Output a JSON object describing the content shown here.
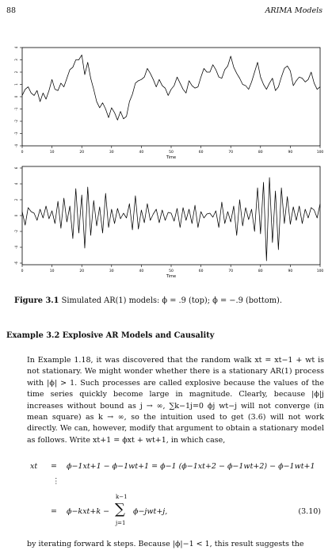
{
  "header": {
    "page_number": "88",
    "running_title": "ARIMA Models"
  },
  "plots": [
    {
      "xlabel": "Time",
      "xticks": [
        "0",
        "10",
        "20",
        "30",
        "40",
        "50",
        "60",
        "70",
        "80",
        "90",
        "100"
      ],
      "yticks": [
        "-4",
        "-3",
        "-2",
        "-1",
        "0",
        "1",
        "2",
        "3",
        "4"
      ],
      "ylim": [
        -4,
        4
      ],
      "xlim": [
        0,
        100
      ]
    },
    {
      "xlabel": "Time",
      "xticks": [
        "0",
        "10",
        "20",
        "30",
        "40",
        "50",
        "60",
        "70",
        "80",
        "90",
        "100"
      ],
      "yticks": [
        "-6",
        "-4",
        "-2",
        "0",
        "2",
        "4",
        "6"
      ],
      "ylim": [
        -6.2,
        6.2
      ],
      "xlim": [
        0,
        100
      ]
    }
  ],
  "chart_data": [
    {
      "type": "line",
      "title": "",
      "xlabel": "Time",
      "ylabel": "",
      "xlim": [
        0,
        100
      ],
      "ylim": [
        -4,
        4
      ],
      "series": [
        {
          "values": [
            0.1,
            0.6,
            0.8,
            0.3,
            0.1,
            0.5,
            -0.4,
            0.3,
            -0.2,
            0.5,
            1.4,
            0.6,
            0.5,
            1.1,
            0.8,
            1.5,
            2.2,
            2.4,
            3.0,
            3.0,
            3.4,
            1.8,
            2.8,
            1.5,
            0.6,
            -0.4,
            -0.9,
            -0.5,
            -1.0,
            -1.7,
            -0.9,
            -1.3,
            -1.9,
            -1.2,
            -1.8,
            -1.6,
            -0.4,
            0.2,
            1.1,
            1.3,
            1.4,
            1.6,
            2.3,
            1.9,
            1.4,
            0.8,
            1.4,
            0.9,
            0.7,
            0.1,
            0.6,
            0.9,
            1.6,
            1.1,
            0.6,
            0.3,
            1.3,
            0.9,
            0.7,
            0.8,
            1.6,
            2.3,
            2.0,
            2.0,
            2.6,
            2.2,
            1.6,
            1.5,
            2.2,
            2.5,
            3.3,
            2.4,
            1.9,
            1.5,
            1.0,
            0.9,
            0.6,
            1.2,
            2.0,
            2.8,
            1.6,
            1.0,
            0.6,
            1.1,
            1.5,
            0.5,
            0.8,
            1.6,
            2.3,
            2.5,
            2.1,
            0.9,
            1.3,
            1.6,
            1.5,
            1.2,
            1.4,
            2.0,
            1.1,
            0.6,
            0.8
          ]
        }
      ]
    },
    {
      "type": "line",
      "title": "",
      "xlabel": "Time",
      "ylabel": "",
      "xlim": [
        0,
        100
      ],
      "ylim": [
        -6.2,
        6.2
      ],
      "series": [
        {
          "values": [
            0.5,
            -1.2,
            1.0,
            0.5,
            0.3,
            -0.6,
            0.8,
            -0.3,
            1.2,
            -0.4,
            0.6,
            -1.0,
            1.8,
            -1.6,
            2.2,
            -0.8,
            1.2,
            -2.9,
            3.4,
            -2.2,
            2.6,
            -4.1,
            3.6,
            -2.5,
            1.9,
            -1.3,
            1.1,
            -2.2,
            2.8,
            -1.5,
            0.8,
            -1.0,
            0.9,
            -0.4,
            0.3,
            -0.3,
            1.5,
            -1.8,
            2.5,
            -1.7,
            0.7,
            -0.9,
            1.5,
            -0.6,
            0.2,
            0.8,
            -0.9,
            0.7,
            -0.6,
            0.4,
            0.3,
            -0.7,
            0.9,
            -1.5,
            1.0,
            -0.6,
            0.8,
            -1.0,
            1.3,
            -1.5,
            0.5,
            -0.3,
            0.2,
            0.3,
            -0.2,
            0.6,
            -1.5,
            1.7,
            -1.0,
            0.5,
            -0.8,
            1.2,
            -2.5,
            2.0,
            -1.3,
            1.0,
            -0.5,
            0.8,
            -2.0,
            3.5,
            -2.3,
            4.2,
            -5.7,
            4.8,
            -3.4,
            3.1,
            -4.3,
            3.5,
            -1.0,
            2.4,
            -1.1,
            1.1,
            -0.6,
            1.2,
            -1.0,
            0.8,
            -0.3,
            1.0,
            0.7,
            -0.3,
            1.5
          ]
        }
      ]
    }
  ],
  "caption": {
    "label": "Figure 3.1",
    "text": " Simulated AR(1) models: ϕ = .9 (top); ϕ = −.9 (bottom)."
  },
  "example": {
    "title": "Example 3.2 Explosive AR Models and Causality"
  },
  "paragraph1": "In Example 1.18, it was discovered that the random walk xt = xt−1 + wt is not stationary. We might wonder whether there is a stationary AR(1) process with |ϕ| > 1. Such processes are called explosive because the values of the time series quickly become large in magnitude. Clearly, because |ϕ|j increases without bound as j → ∞, ∑k−1j=0 ϕj wt−j will not converge (in mean square) as k → ∞, so the intuition used to get (3.6) will not work directly. We can, however, modify that argument to obtain a stationary model as follows. Write xt+1 = ϕxt + wt+1, in which case,",
  "equation": {
    "line1_lhs": "xt",
    "line1_eq": "=",
    "line1_rhs": "ϕ−1xt+1 − ϕ−1wt+1 = ϕ−1 (ϕ−1xt+2 − ϕ−1wt+2) − ϕ−1wt+1",
    "vdots": "⋮",
    "line3_eq": "=",
    "line3_rhs_a": "ϕ−kxt+k −",
    "sum_top": "k−1",
    "sum_sym": "∑",
    "sum_bottom": "j=1",
    "line3_rhs_b": "ϕ−jwt+j,",
    "number": "(3.10)"
  },
  "paragraph2": "by iterating forward k steps. Because |ϕ|−1 < 1, this result suggests the"
}
